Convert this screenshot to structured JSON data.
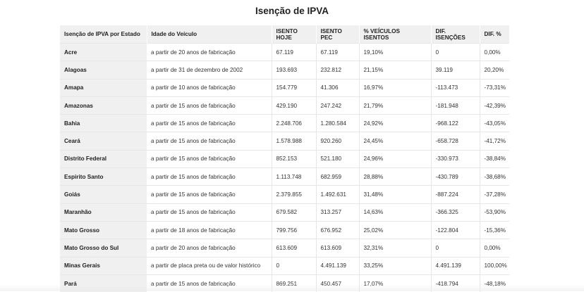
{
  "title": "Isenção de IPVA",
  "columns": [
    "Isenção de IPVA por Estado",
    "Idade do Veículo",
    "ISENTO HOJE",
    "ISENTO PEC",
    "% VEÍCULOS ISENTOS",
    "DIF. ISENÇÕES",
    "DIF. %"
  ],
  "rows": [
    [
      "Acre",
      "a partir de 20 anos de fabricação",
      "67.119",
      "67.119",
      "19,10%",
      "0",
      "0,00%"
    ],
    [
      "Alagoas",
      "a partir de 31 de dezembro de 2002",
      "193.693",
      "232.812",
      "21,15%",
      "39.119",
      "20,20%"
    ],
    [
      "Amapa",
      "a partir de 10 anos de fabricação",
      "154.779",
      "41.306",
      "16,97%",
      "-113.473",
      "-73,31%"
    ],
    [
      "Amazonas",
      "a partir de 15 anos de fabricação",
      "429.190",
      "247.242",
      "21,79%",
      "-181.948",
      "-42,39%"
    ],
    [
      "Bahia",
      "a partir de 15 anos de fabricação",
      "2.248.706",
      "1.280.584",
      "24,92%",
      "-968.122",
      "-43,05%"
    ],
    [
      "Ceará",
      "a partir de 15 anos de fabricação",
      "1.578.988",
      "920.260",
      "24,45%",
      "-658.728",
      "-41,72%"
    ],
    [
      "Distrito Federal",
      "a partir de 15 anos de fabricação",
      "852.153",
      "521.180",
      "24,96%",
      "-330.973",
      "-38,84%"
    ],
    [
      "Espirito Santo",
      "a partir de 15 anos de fabricação",
      "1.113.748",
      "682.959",
      "28,88%",
      "-430.789",
      "-38,68%"
    ],
    [
      "Goiás",
      "a partir de 15 anos de fabricação",
      "2.379.855",
      "1.492.631",
      "31,48%",
      "-887.224",
      "-37,28%"
    ],
    [
      "Maranhão",
      "a partir de 15 anos de fabricação",
      "679.582",
      "313.257",
      "14,63%",
      "-366.325",
      "-53,90%"
    ],
    [
      "Mato Grosso",
      "a partir de 18 anos de fabricação",
      "799.756",
      "676.952",
      "25,02%",
      "-122.804",
      "-15,36%"
    ],
    [
      "Mato Grosso do Sul",
      "a partir de 20 anos de fabricação",
      "613.609",
      "613.609",
      "32,31%",
      "0",
      "0,00%"
    ],
    [
      "Minas Gerais",
      "a partir de placa preta ou de valor histórico",
      "0",
      "4.491.139",
      "33,25%",
      "4.491.139",
      "100,00%"
    ],
    [
      "Pará",
      "a partir de 15 anos de fabricação",
      "869.251",
      "450.457",
      "17,07%",
      "-418.794",
      "-48,18%"
    ]
  ]
}
